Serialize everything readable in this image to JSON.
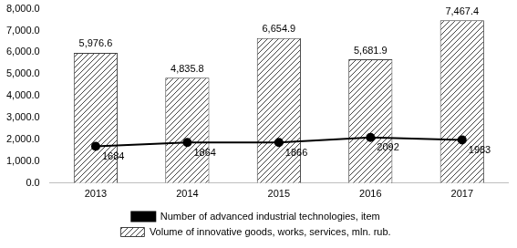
{
  "chart_data": {
    "type": "bar",
    "categories": [
      "2013",
      "2014",
      "2015",
      "2016",
      "2017"
    ],
    "series": [
      {
        "name": "Volume of innovative goods, works, services, mln. rub.",
        "type": "bar",
        "color": "#404040",
        "values": [
          5976.6,
          4835.8,
          6654.9,
          5681.9,
          7467.4
        ],
        "value_labels": [
          "5,976.6",
          "4,835.8",
          "6,654.9",
          "5,681.9",
          "7,467.4"
        ]
      },
      {
        "name": "Number of advanced industrial technologies, item",
        "type": "line",
        "color": "#000000",
        "marker": "circle",
        "values": [
          1684,
          1864,
          1866,
          2092,
          1983
        ]
      }
    ],
    "ylim": [
      0,
      8000
    ],
    "yticks": [
      {
        "value": 0,
        "label": "0.0"
      },
      {
        "value": 1000,
        "label": "1,000.0"
      },
      {
        "value": 2000,
        "label": "2,000.0"
      },
      {
        "value": 3000,
        "label": "3,000.0"
      },
      {
        "value": 4000,
        "label": "4,000.0"
      },
      {
        "value": 5000,
        "label": "5,000.0"
      },
      {
        "value": 6000,
        "label": "6,000.0"
      },
      {
        "value": 7000,
        "label": "7,000.0"
      },
      {
        "value": 8000,
        "label": "8,000.0"
      }
    ],
    "grid": false,
    "legend": "bottom",
    "data_labels": true
  }
}
